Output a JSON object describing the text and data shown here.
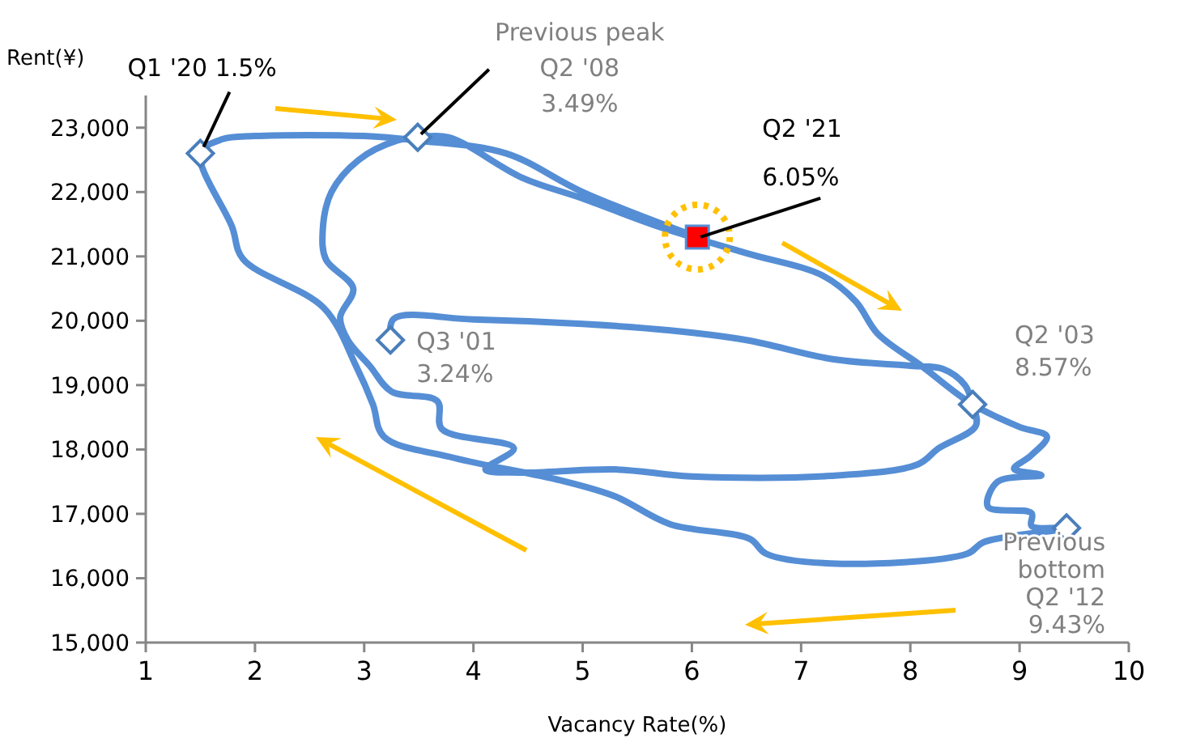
{
  "chart_data": {
    "type": "line",
    "xlabel": "Vacancy Rate(%)",
    "ylabel": "Rent(¥)",
    "xlim": [
      1,
      10
    ],
    "ylim": [
      15000,
      23500
    ],
    "xticks": [
      1,
      2,
      3,
      4,
      5,
      6,
      7,
      8,
      9,
      10
    ],
    "yticks": [
      {
        "value": 15000,
        "label": "15,000"
      },
      {
        "value": 16000,
        "label": "16,000"
      },
      {
        "value": 17000,
        "label": "17,000"
      },
      {
        "value": 18000,
        "label": "18,000"
      },
      {
        "value": 19000,
        "label": "19,000"
      },
      {
        "value": 20000,
        "label": "20,000"
      },
      {
        "value": 21000,
        "label": "21,000"
      },
      {
        "value": 22000,
        "label": "22,000"
      },
      {
        "value": 23000,
        "label": "23,000"
      }
    ],
    "grid": false,
    "series": [
      {
        "type": "line",
        "color": "#558ed5",
        "marker": "none",
        "x": [
          3.24,
          3.27,
          4.0,
          5.0,
          5.8,
          6.5,
          7.3,
          8.0,
          8.3,
          8.5,
          8.57,
          8.6,
          8.26,
          8.07,
          7.27,
          6.0,
          5.3,
          4.41,
          4.11,
          4.37,
          3.71,
          3.67,
          3.25,
          3.05,
          2.85,
          2.78,
          2.9,
          2.65,
          2.62,
          2.7,
          2.95,
          3.3,
          3.49,
          3.77,
          4.45,
          5.0,
          5.7,
          6.5,
          7.2,
          7.5,
          7.7,
          8.1,
          8.57,
          9.0,
          9.25,
          9.1,
          8.95,
          9.2,
          8.8,
          8.71,
          9.11,
          9.11,
          9.43,
          8.67,
          8.52,
          7.27,
          6.68,
          6.53,
          5.8,
          5.3,
          4.8,
          3.82,
          3.18,
          3.08,
          2.93,
          2.63,
          1.89,
          1.79,
          1.5,
          1.7,
          2.0,
          3.0,
          3.49,
          4.3,
          5.0,
          6.05
        ],
        "values": [
          19700,
          20030,
          20020,
          19950,
          19850,
          19700,
          19400,
          19300,
          19250,
          19000,
          18700,
          18370,
          18020,
          17770,
          17590,
          17580,
          17690,
          17640,
          17690,
          18020,
          18320,
          18750,
          18900,
          19300,
          19700,
          20050,
          20500,
          20950,
          21400,
          22000,
          22500,
          22800,
          22850,
          22850,
          22220,
          21900,
          21460,
          21050,
          20700,
          20300,
          19800,
          19300,
          18700,
          18350,
          18200,
          17900,
          17700,
          17600,
          17500,
          17110,
          17010,
          16810,
          16780,
          16560,
          16380,
          16230,
          16380,
          16610,
          16840,
          17270,
          17520,
          17870,
          18200,
          18700,
          19280,
          20200,
          20960,
          21460,
          22600,
          22820,
          22870,
          22870,
          22800,
          22600,
          22000,
          21300
        ]
      },
      {
        "type": "scatter",
        "color": "#4a7ebb",
        "marker": "diamond",
        "x": [
          3.24,
          8.57,
          3.49,
          9.43,
          1.5
        ],
        "values": [
          19700,
          18700,
          22850,
          16780,
          22600
        ]
      },
      {
        "type": "scatter",
        "color": "#ff0000",
        "marker": "square",
        "x": [
          6.05
        ],
        "values": [
          21300
        ]
      }
    ],
    "annotations": [
      {
        "text": "Q1 '20 1.5%",
        "x": 1.5,
        "y": 22600
      },
      {
        "text": "Previous peak\nQ2 '08\n3.49%",
        "x": 3.49,
        "y": 22850
      },
      {
        "text": "Q2 '21\n6.05%",
        "x": 6.05,
        "y": 21300
      },
      {
        "text": "Q3 '01\n3.24%",
        "x": 3.24,
        "y": 19700
      },
      {
        "text": "Q2 '03\n8.57%",
        "x": 8.57,
        "y": 18700
      },
      {
        "text": "Previous\nbottom\nQ2 '12\n9.43%",
        "x": 9.43,
        "y": 16780
      }
    ]
  }
}
